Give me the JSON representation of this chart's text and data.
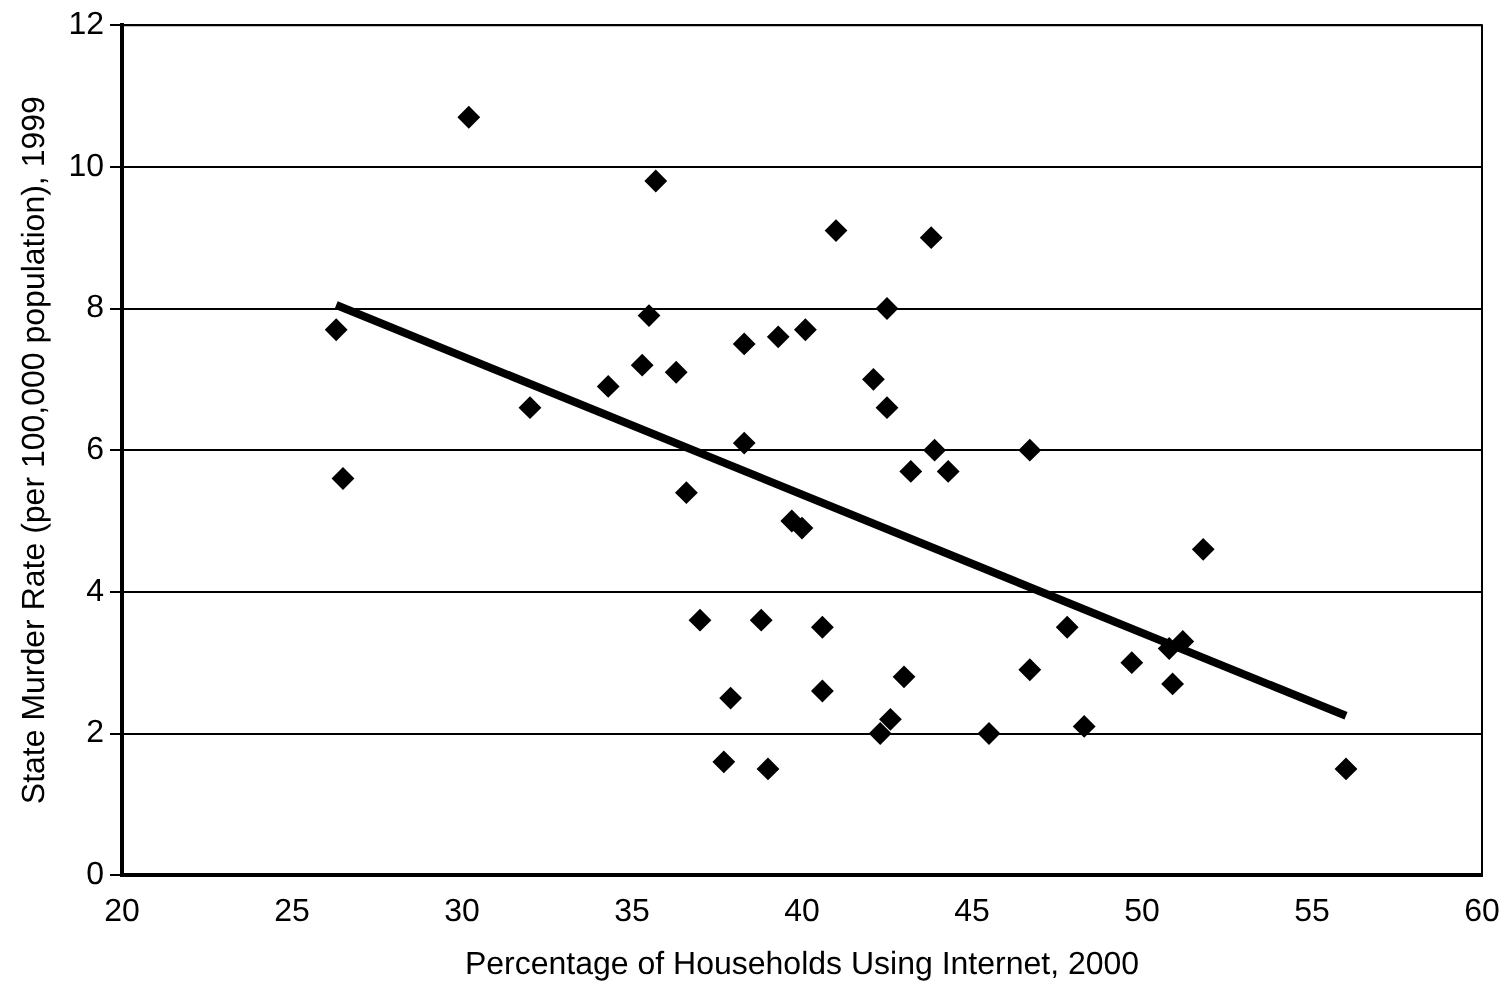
{
  "chart_data": {
    "type": "scatter",
    "xlabel": "Percentage of Households Using Internet, 2000",
    "ylabel": "State Murder Rate (per 100,000 population), 1999",
    "xlim": [
      20,
      60
    ],
    "xticks": [
      20,
      25,
      30,
      35,
      40,
      45,
      50,
      55,
      60
    ],
    "ylim": [
      0,
      12
    ],
    "yticks": [
      0,
      2,
      4,
      6,
      8,
      10,
      12
    ],
    "grid": "y",
    "legend": false,
    "series": [
      {
        "marker": "diamond",
        "color": "#000000",
        "x": [
          26.3,
          26.5,
          30.2,
          32,
          34.3,
          35.3,
          35.5,
          35.7,
          36.3,
          36.6,
          37,
          37.7,
          37.9,
          38.3,
          38.3,
          38.8,
          39,
          39.3,
          39.7,
          40,
          40.1,
          40.6,
          40.6,
          41,
          42.1,
          42.3,
          42.5,
          42.5,
          42.6,
          43,
          43.2,
          43.8,
          43.9,
          44.3,
          45.5,
          46.7,
          46.7,
          47.8,
          48.3,
          49.7,
          50.8,
          50.9,
          51.2,
          51.8,
          56
        ],
        "values": [
          7.7,
          5.6,
          10.7,
          6.6,
          6.9,
          7.2,
          7.9,
          9.8,
          7.1,
          5.4,
          3.6,
          1.6,
          2.5,
          6.1,
          7.5,
          3.6,
          1.5,
          7.6,
          5.0,
          4.9,
          7.7,
          3.5,
          2.6,
          9.1,
          7.0,
          2.0,
          8.0,
          6.6,
          2.2,
          2.8,
          5.7,
          9.0,
          6.0,
          5.7,
          2.0,
          6.0,
          2.9,
          3.5,
          2.1,
          3.0,
          3.2,
          2.7,
          3.3,
          4.6,
          1.5
        ]
      },
      {
        "type": "line",
        "marker": "none",
        "color": "#000000",
        "x": [
          26.3,
          56
        ],
        "values": [
          8.05,
          2.25
        ]
      }
    ]
  }
}
